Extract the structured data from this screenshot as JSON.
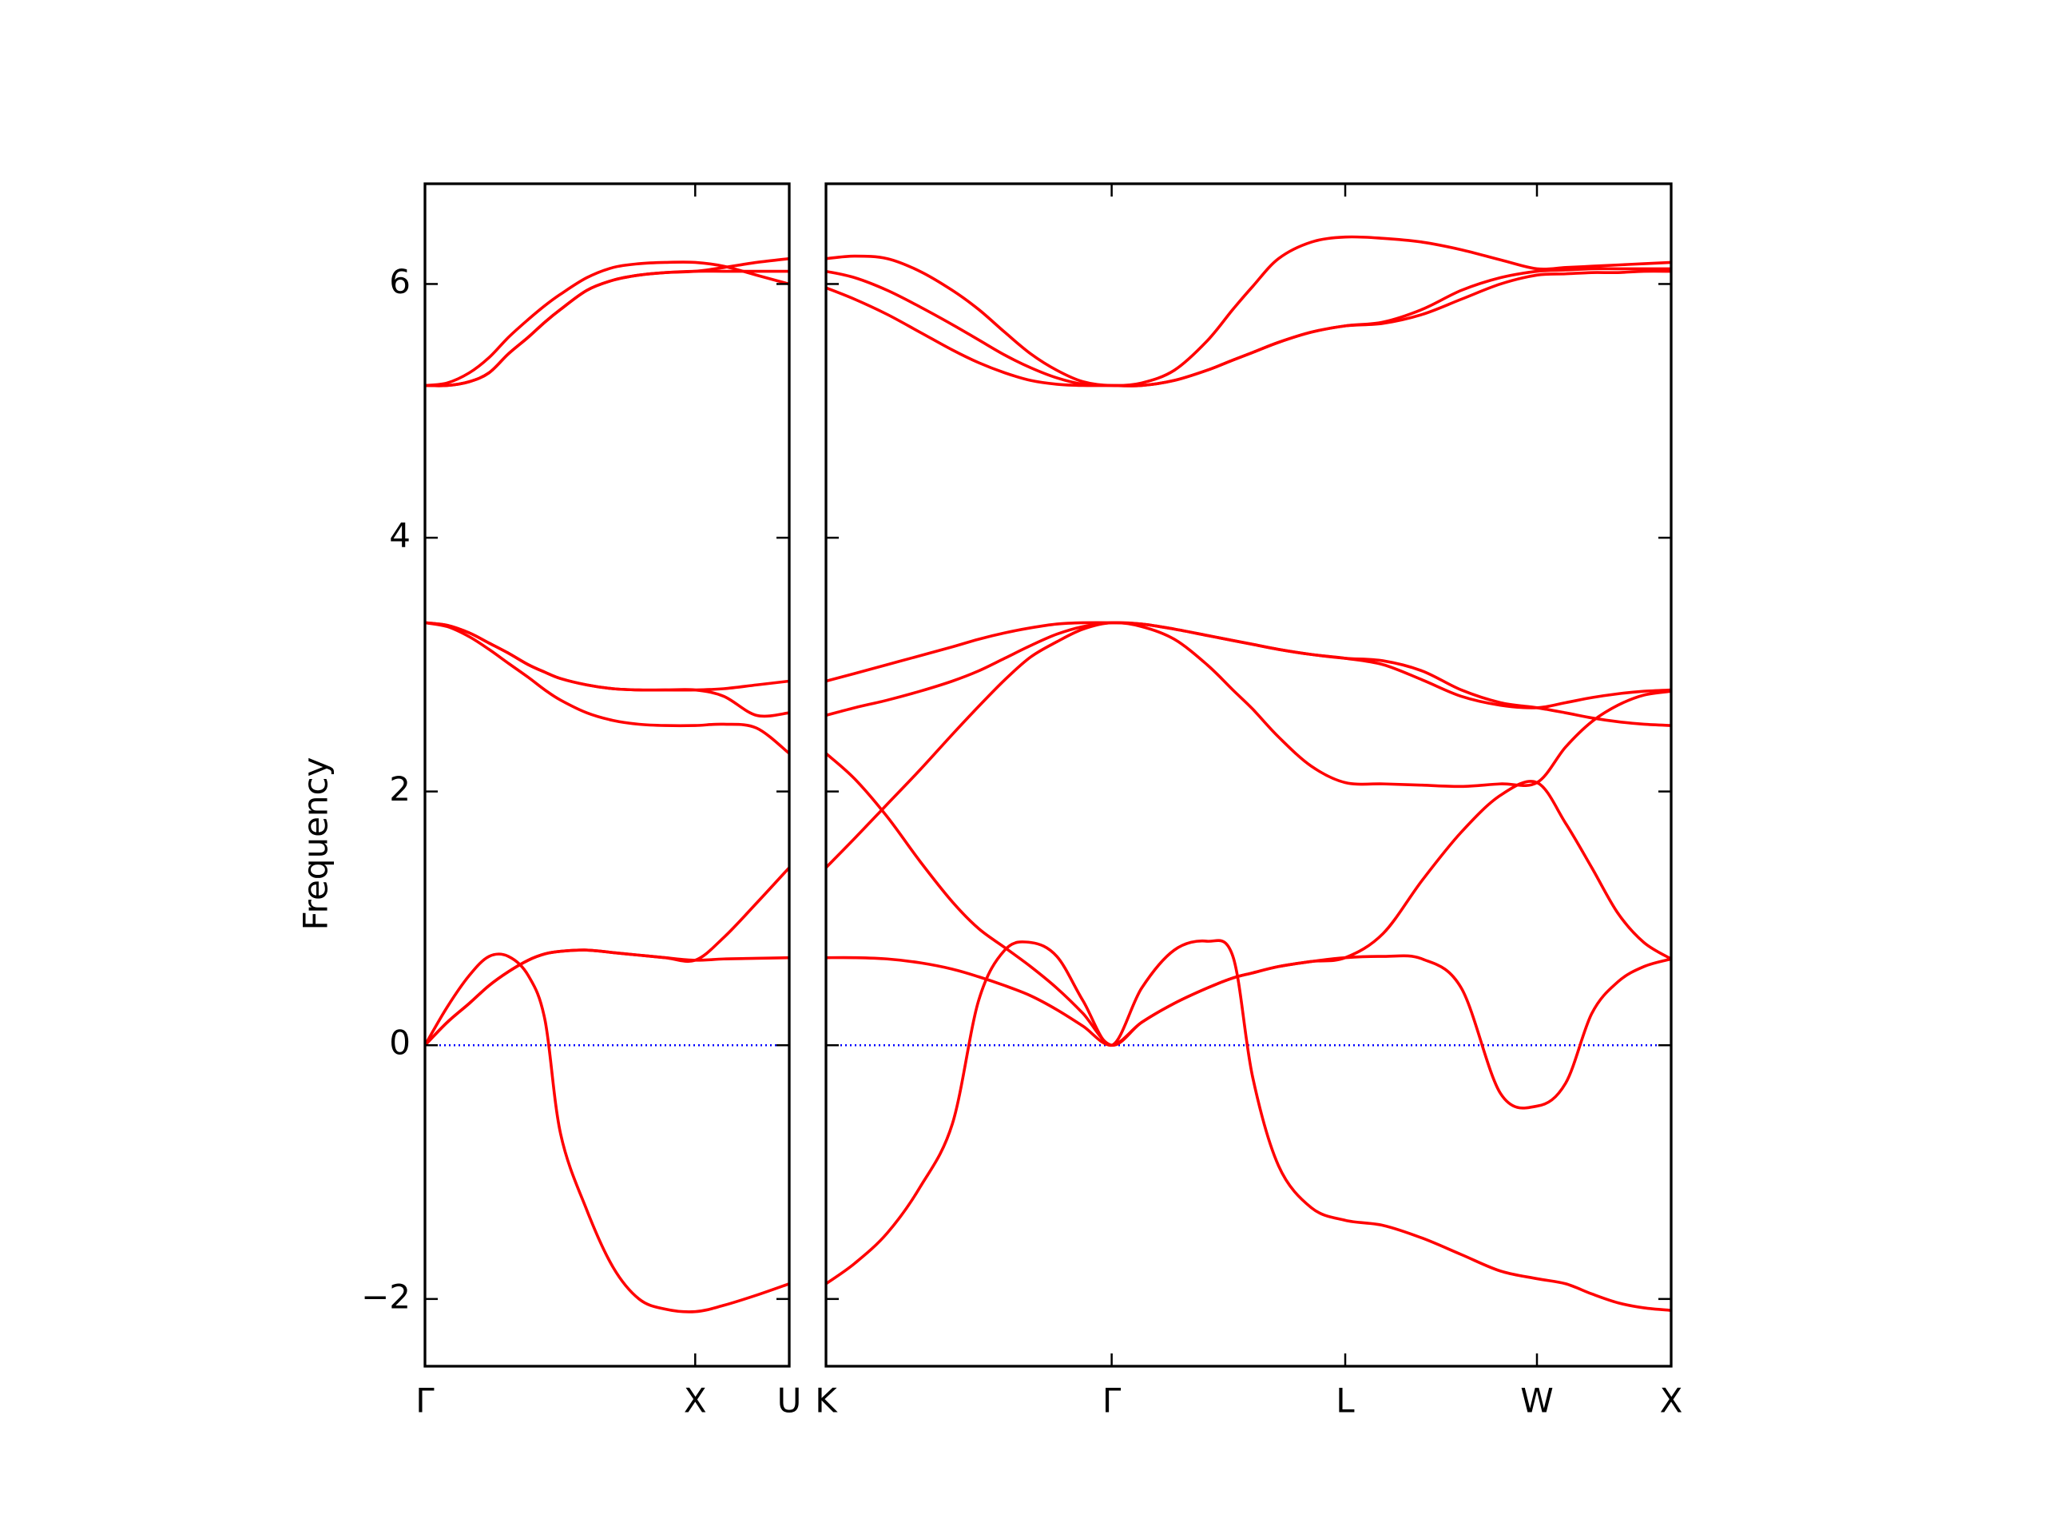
{
  "chart_data": [
    {
      "type": "line",
      "ylabel": "Frequency",
      "x": [
        0,
        0.082,
        0.164,
        0.237,
        0.309,
        0.382,
        0.444,
        0.502,
        0.599,
        0.696,
        0.792,
        0.889,
        1.0,
        1.106,
        1.227,
        1.348
      ],
      "xlim": [
        0,
        1.348
      ],
      "xticks": [
        {
          "value": 0,
          "label": "Γ"
        },
        {
          "value": 1.0,
          "label": "X"
        },
        {
          "value": 1.348,
          "label": "U"
        }
      ],
      "ylim": [
        -2.53,
        6.79
      ],
      "yticks": [
        {
          "value": -2,
          "label": "−2"
        },
        0,
        2,
        4,
        6
      ],
      "show_ytick_labels": true,
      "hline": {
        "value": 0,
        "color": "#0000ff",
        "style": "dotted"
      },
      "series": [
        {
          "color": "#ff0000",
          "values": [
            0,
            0.3,
            0.55,
            0.7,
            0.7,
            0.55,
            0.2,
            -0.7,
            -1.3,
            -1.75,
            -2.0,
            -2.08,
            -2.1,
            -2.05,
            -1.97,
            -1.88
          ]
        },
        {
          "color": "#ff0000",
          "values": [
            0,
            0.18,
            0.33,
            0.47,
            0.58,
            0.67,
            0.72,
            0.74,
            0.75,
            0.73,
            0.71,
            0.69,
            0.67,
            0.68,
            0.685,
            0.69
          ]
        },
        {
          "color": "#ff0000",
          "values": [
            0,
            0.18,
            0.33,
            0.47,
            0.58,
            0.67,
            0.72,
            0.74,
            0.75,
            0.73,
            0.71,
            0.69,
            0.67,
            0.85,
            1.12,
            1.4
          ]
        },
        {
          "color": "#ff0000",
          "values": [
            3.33,
            3.31,
            3.25,
            3.17,
            3.09,
            3.0,
            2.94,
            2.89,
            2.84,
            2.81,
            2.8,
            2.8,
            2.8,
            2.81,
            2.84,
            2.87
          ]
        },
        {
          "color": "#ff0000",
          "values": [
            3.33,
            3.31,
            3.25,
            3.17,
            3.09,
            3.0,
            2.94,
            2.89,
            2.84,
            2.81,
            2.8,
            2.8,
            2.8,
            2.75,
            2.6,
            2.62
          ]
        },
        {
          "color": "#ff0000",
          "values": [
            3.33,
            3.3,
            3.22,
            3.12,
            3.01,
            2.9,
            2.8,
            2.72,
            2.62,
            2.56,
            2.53,
            2.52,
            2.52,
            2.53,
            2.5,
            2.3
          ]
        },
        {
          "color": "#ff0000",
          "values": [
            5.2,
            5.22,
            5.3,
            5.42,
            5.58,
            5.72,
            5.83,
            5.92,
            6.05,
            6.13,
            6.16,
            6.17,
            6.17,
            6.14,
            6.07,
            6.0
          ]
        },
        {
          "color": "#ff0000",
          "values": [
            5.2,
            5.2,
            5.23,
            5.3,
            5.45,
            5.58,
            5.7,
            5.8,
            5.95,
            6.03,
            6.07,
            6.09,
            6.1,
            6.1,
            6.1,
            6.1
          ]
        },
        {
          "color": "#ff0000",
          "values": [
            5.2,
            5.2,
            5.23,
            5.3,
            5.45,
            5.58,
            5.7,
            5.8,
            5.95,
            6.03,
            6.07,
            6.09,
            6.1,
            6.13,
            6.17,
            6.2
          ]
        }
      ]
    },
    {
      "type": "line",
      "x": [
        1.348,
        1.454,
        1.575,
        1.696,
        1.816,
        1.913,
        2.01,
        2.106,
        2.203,
        2.3,
        2.406,
        2.517,
        2.638,
        2.759,
        2.855,
        2.928,
        3.024,
        3.145,
        3.271,
        3.411,
        3.556,
        3.701,
        3.846,
        3.981,
        4.087,
        4.184,
        4.281,
        4.377,
        4.478
      ],
      "xlim": [
        1.348,
        4.478
      ],
      "xticks": [
        {
          "value": 1.348,
          "label": "K"
        },
        {
          "value": 2.406,
          "label": "Γ"
        },
        {
          "value": 3.271,
          "label": "L"
        },
        {
          "value": 3.981,
          "label": "W"
        },
        {
          "value": 4.478,
          "label": "X"
        }
      ],
      "ylim": [
        -2.53,
        6.79
      ],
      "yticks": [
        -2,
        0,
        2,
        4,
        6
      ],
      "show_ytick_labels": false,
      "hline": {
        "value": 0,
        "color": "#0000ff",
        "style": "dotted"
      },
      "series": [
        {
          "color": "#ff0000",
          "values": [
            -1.88,
            -1.72,
            -1.48,
            -1.12,
            -0.62,
            0.35,
            0.75,
            0.81,
            0.7,
            0.35,
            0,
            0.45,
            0.75,
            0.82,
            0.7,
            -0.25,
            -0.95,
            -1.28,
            -1.38,
            -1.42,
            -1.52,
            -1.65,
            -1.78,
            -1.84,
            -1.88,
            -1.96,
            -2.03,
            -2.07,
            -2.09
          ]
        },
        {
          "color": "#ff0000",
          "values": [
            0.69,
            0.69,
            0.68,
            0.65,
            0.6,
            0.54,
            0.47,
            0.39,
            0.28,
            0.15,
            0,
            0.18,
            0.33,
            0.45,
            0.53,
            0.57,
            0.62,
            0.66,
            0.69,
            0.7,
            0.68,
            0.45,
            -0.38,
            -0.48,
            -0.3,
            0.25,
            0.5,
            0.62,
            0.68
          ]
        },
        {
          "color": "#ff0000",
          "values": [
            2.3,
            2.1,
            1.8,
            1.45,
            1.13,
            0.92,
            0.77,
            0.62,
            0.45,
            0.25,
            0,
            0.18,
            0.33,
            0.45,
            0.53,
            0.57,
            0.62,
            0.66,
            0.69,
            0.88,
            1.3,
            1.68,
            1.97,
            2.07,
            1.75,
            1.4,
            1.04,
            0.81,
            0.68
          ]
        },
        {
          "color": "#ff0000",
          "values": [
            1.4,
            1.63,
            1.9,
            2.17,
            2.45,
            2.67,
            2.88,
            3.06,
            3.18,
            3.28,
            3.33,
            3.3,
            3.2,
            3.0,
            2.8,
            2.65,
            2.43,
            2.2,
            2.07,
            2.06,
            2.05,
            2.04,
            2.06,
            2.07,
            2.35,
            2.55,
            2.68,
            2.76,
            2.79
          ]
        },
        {
          "color": "#ff0000",
          "values": [
            2.6,
            2.66,
            2.72,
            2.79,
            2.87,
            2.95,
            3.05,
            3.15,
            3.24,
            3.3,
            3.33,
            3.32,
            3.28,
            3.23,
            3.19,
            3.16,
            3.12,
            3.08,
            3.05,
            3.03,
            2.95,
            2.8,
            2.7,
            2.66,
            2.62,
            2.58,
            2.55,
            2.53,
            2.52
          ]
        },
        {
          "color": "#ff0000",
          "values": [
            2.87,
            2.93,
            3.0,
            3.07,
            3.14,
            3.2,
            3.25,
            3.29,
            3.32,
            3.33,
            3.33,
            3.32,
            3.28,
            3.23,
            3.19,
            3.16,
            3.12,
            3.08,
            3.05,
            3.0,
            2.88,
            2.75,
            2.68,
            2.66,
            2.7,
            2.74,
            2.77,
            2.79,
            2.8
          ]
        },
        {
          "color": "#ff0000",
          "values": [
            6.2,
            6.22,
            6.2,
            6.1,
            5.95,
            5.8,
            5.62,
            5.45,
            5.32,
            5.23,
            5.2,
            5.22,
            5.32,
            5.55,
            5.8,
            5.98,
            6.2,
            6.33,
            6.37,
            6.36,
            6.33,
            6.27,
            6.19,
            6.12,
            6.13,
            6.14,
            6.15,
            6.16,
            6.17
          ]
        },
        {
          "color": "#ff0000",
          "values": [
            6.1,
            6.05,
            5.95,
            5.82,
            5.68,
            5.56,
            5.44,
            5.34,
            5.26,
            5.21,
            5.2,
            5.2,
            5.24,
            5.32,
            5.4,
            5.46,
            5.54,
            5.62,
            5.67,
            5.7,
            5.8,
            5.95,
            6.05,
            6.1,
            6.11,
            6.12,
            6.12,
            6.12,
            6.12
          ]
        },
        {
          "color": "#ff0000",
          "values": [
            5.97,
            5.88,
            5.76,
            5.62,
            5.48,
            5.38,
            5.3,
            5.24,
            5.21,
            5.2,
            5.2,
            5.2,
            5.24,
            5.32,
            5.4,
            5.46,
            5.54,
            5.62,
            5.67,
            5.69,
            5.76,
            5.88,
            6.0,
            6.07,
            6.08,
            6.09,
            6.09,
            6.1,
            6.1
          ]
        }
      ]
    }
  ]
}
